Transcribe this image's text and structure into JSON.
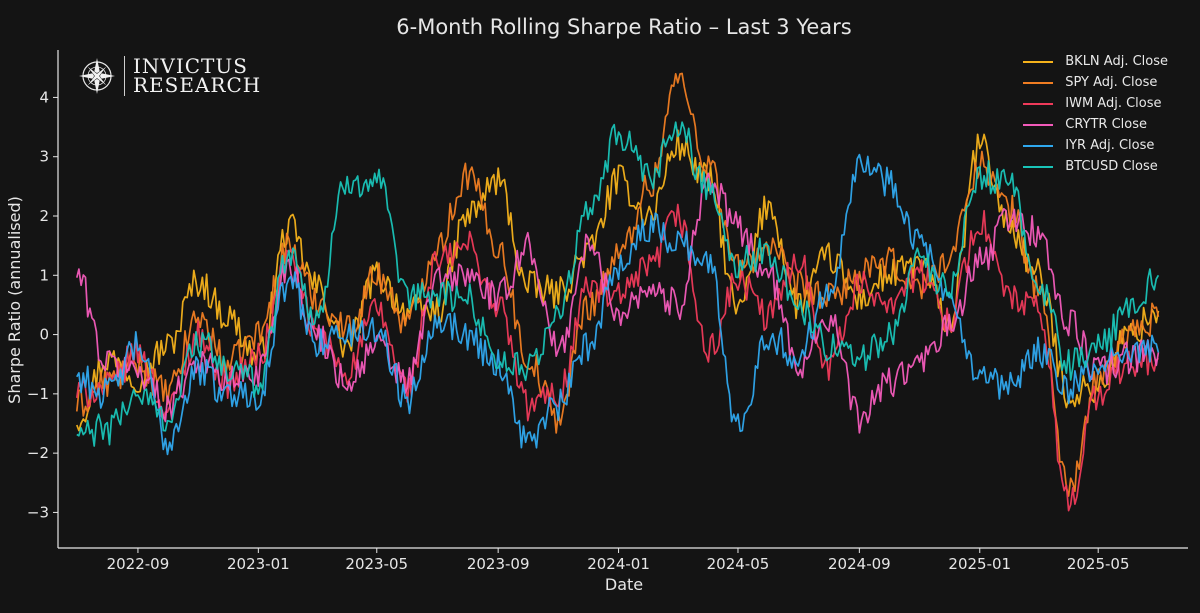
{
  "chart_data": {
    "type": "line",
    "title": "6-Month Rolling Sharpe Ratio – Last 3 Years",
    "xlabel": "Date",
    "ylabel": "Sharpe Ratio (annualised)",
    "ylim": [
      -3.6,
      4.8
    ],
    "yticks": [
      -3,
      -2,
      -1,
      0,
      1,
      2,
      3,
      4
    ],
    "xlim": [
      "2022-06-12",
      "2025-07-31"
    ],
    "xticks": [
      "2022-09",
      "2023-01",
      "2023-05",
      "2023-09",
      "2024-01",
      "2024-05",
      "2024-09",
      "2025-01",
      "2025-05"
    ],
    "x": [
      "2022-07-01",
      "2022-08-01",
      "2022-09-01",
      "2022-10-01",
      "2022-11-01",
      "2022-12-01",
      "2023-01-01",
      "2023-02-01",
      "2023-03-01",
      "2023-04-01",
      "2023-05-01",
      "2023-06-01",
      "2023-07-01",
      "2023-08-01",
      "2023-09-01",
      "2023-10-01",
      "2023-11-01",
      "2023-12-01",
      "2024-01-01",
      "2024-02-01",
      "2024-03-01",
      "2024-04-01",
      "2024-05-01",
      "2024-06-01",
      "2024-07-01",
      "2024-08-01",
      "2024-09-01",
      "2024-10-01",
      "2024-11-01",
      "2024-12-01",
      "2025-01-01",
      "2025-02-01",
      "2025-03-01",
      "2025-04-01",
      "2025-05-01",
      "2025-06-01",
      "2025-07-01"
    ],
    "series": [
      {
        "name": "BKLN Adj. Close",
        "color": "#f5b21b",
        "values": [
          -1.4,
          -0.4,
          -0.7,
          -0.2,
          0.9,
          0.3,
          -0.4,
          1.8,
          0.8,
          -0.2,
          1.0,
          0.4,
          0.4,
          2.0,
          2.6,
          0.8,
          0.7,
          1.4,
          2.6,
          2.0,
          3.2,
          2.6,
          0.4,
          2.2,
          0.5,
          1.3,
          0.6,
          1.0,
          1.2,
          0.2,
          3.2,
          1.8,
          1.0,
          -1.0,
          -0.9,
          0.0,
          0.4
        ]
      },
      {
        "name": "SPY Adj. Close",
        "color": "#f07d22",
        "values": [
          -1.2,
          -0.8,
          -0.5,
          -1.0,
          0.3,
          -0.5,
          0.0,
          1.5,
          0.6,
          0.1,
          1.0,
          0.2,
          1.5,
          2.7,
          1.5,
          -0.4,
          -1.4,
          0.5,
          1.3,
          2.5,
          4.3,
          2.9,
          1.1,
          1.5,
          0.8,
          0.6,
          1.0,
          1.2,
          0.8,
          1.3,
          2.9,
          2.1,
          0.8,
          -2.6,
          -0.8,
          0.0,
          0.3
        ]
      },
      {
        "name": "IWM Adj. Close",
        "color": "#ef3a5a",
        "values": [
          -1.0,
          -0.9,
          -0.3,
          -1.3,
          0.0,
          -0.8,
          -0.4,
          1.3,
          0.0,
          -0.6,
          0.4,
          -0.9,
          1.2,
          1.5,
          0.5,
          -1.2,
          -1.0,
          0.8,
          0.6,
          1.1,
          2.0,
          -0.3,
          0.9,
          0.3,
          1.3,
          -0.5,
          0.8,
          0.6,
          1.0,
          0.3,
          1.9,
          0.6,
          0.4,
          -2.8,
          -1.0,
          -0.5,
          -0.4
        ]
      },
      {
        "name": "CRYTR Close",
        "color": "#f35bba",
        "values": [
          1.0,
          -0.5,
          -0.6,
          -1.2,
          -0.4,
          -0.8,
          -0.6,
          1.2,
          0.0,
          -0.8,
          -0.2,
          -0.8,
          0.9,
          1.0,
          0.6,
          1.5,
          -0.3,
          1.5,
          0.4,
          0.8,
          0.5,
          2.6,
          1.8,
          1.0,
          -0.5,
          0.3,
          -1.4,
          -0.8,
          -0.5,
          0.1,
          1.2,
          2.0,
          1.7,
          0.2,
          -0.6,
          -0.4,
          -0.3
        ]
      },
      {
        "name": "IYR Adj. Close",
        "color": "#2fa8ee",
        "values": [
          -0.7,
          -1.0,
          -0.2,
          -1.8,
          -0.6,
          -1.0,
          -1.0,
          0.9,
          -0.1,
          0.0,
          0.1,
          -1.1,
          0.3,
          0.0,
          -0.5,
          -1.8,
          -1.2,
          -0.2,
          1.2,
          1.8,
          1.6,
          1.2,
          -1.5,
          0.0,
          -0.4,
          0.8,
          2.9,
          2.6,
          1.6,
          0.5,
          -0.8,
          -0.9,
          -0.3,
          -0.9,
          -0.6,
          -0.2,
          -0.3
        ]
      },
      {
        "name": "BTCUSD Close",
        "color": "#19c4b8",
        "values": [
          -1.7,
          -1.6,
          -1.0,
          -1.4,
          -0.1,
          -0.6,
          -0.8,
          1.4,
          0.3,
          2.6,
          2.6,
          0.6,
          0.7,
          0.6,
          -0.4,
          -0.6,
          0.4,
          2.0,
          3.4,
          2.6,
          3.5,
          2.5,
          1.2,
          1.4,
          0.5,
          -0.2,
          -0.4,
          0.0,
          1.3,
          0.7,
          2.7,
          2.5,
          0.9,
          -0.5,
          -0.2,
          0.4,
          1.0
        ]
      }
    ]
  },
  "logo": {
    "line1": "INVICTUS",
    "line2": "RESEARCH"
  }
}
